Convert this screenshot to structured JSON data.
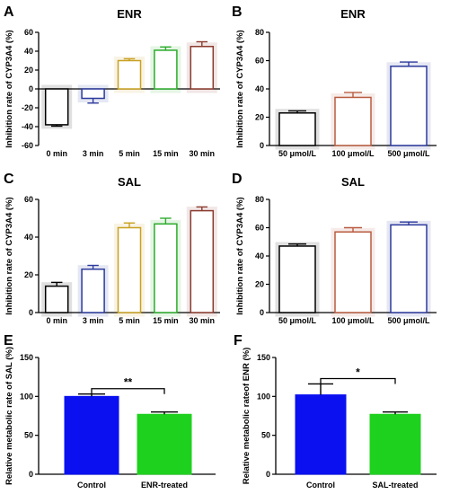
{
  "chart_data": [
    {
      "panel": "A",
      "type": "bar",
      "title": "ENR",
      "ylabel": "Inhibition rate of CYP3A4 (%)",
      "ylim": [
        -60,
        60
      ],
      "yticks": [
        -60,
        -40,
        -20,
        0,
        20,
        40,
        60
      ],
      "categories": [
        "0 min",
        "3 min",
        "5 min",
        "15 min",
        "30 min"
      ],
      "values": [
        -38,
        -10,
        30,
        41,
        45
      ],
      "errors": [
        1.5,
        5,
        2,
        3.5,
        5
      ],
      "colors": [
        "#000000",
        "#2b3a9c",
        "#c8a020",
        "#2cab2c",
        "#8b3a2e"
      ],
      "filled": false
    },
    {
      "panel": "B",
      "type": "bar",
      "title": "ENR",
      "ylabel": "Inhibition rate of CYP3A4 (%)",
      "ylim": [
        0,
        80
      ],
      "yticks": [
        0,
        20,
        40,
        60,
        80
      ],
      "categories": [
        "50 μmol/L",
        "100 μmol/L",
        "500 μmol/L"
      ],
      "values": [
        23,
        34,
        56
      ],
      "errors": [
        1.5,
        3.5,
        3
      ],
      "colors": [
        "#000000",
        "#b85c40",
        "#2c3a9c"
      ],
      "filled": false
    },
    {
      "panel": "C",
      "type": "bar",
      "title": "SAL",
      "ylabel": "Inhibition rate of CYP3A4 (%)",
      "ylim": [
        0,
        60
      ],
      "yticks": [
        0,
        20,
        40,
        60
      ],
      "categories": [
        "0 min",
        "3 min",
        "5 min",
        "15 min",
        "30 min"
      ],
      "values": [
        14,
        23,
        45,
        47,
        54
      ],
      "errors": [
        2,
        2,
        2.5,
        3,
        2
      ],
      "colors": [
        "#000000",
        "#2b3a9c",
        "#c8a020",
        "#2cab2c",
        "#8b3a2e"
      ],
      "filled": false
    },
    {
      "panel": "D",
      "type": "bar",
      "title": "SAL",
      "ylabel": "Inhibition rate of CYP3A4 (%)",
      "ylim": [
        0,
        80
      ],
      "yticks": [
        0,
        20,
        40,
        60,
        80
      ],
      "categories": [
        "50 μmol/L",
        "100 μmol/L",
        "500 μmol/L"
      ],
      "values": [
        47,
        57,
        62
      ],
      "errors": [
        1.5,
        3,
        2
      ],
      "colors": [
        "#000000",
        "#b85c40",
        "#2c3a9c"
      ],
      "filled": false
    },
    {
      "panel": "E",
      "type": "bar",
      "title": "",
      "ylabel": "Relative metabolic rate of SAL (%)",
      "ylim": [
        0,
        150
      ],
      "yticks": [
        0,
        50,
        100,
        150
      ],
      "categories": [
        "Control",
        "ENR-treated"
      ],
      "values": [
        100,
        77
      ],
      "errors": [
        3,
        3
      ],
      "colors": [
        "#0a10f0",
        "#1fd11f"
      ],
      "filled": true,
      "significance": "**"
    },
    {
      "panel": "F",
      "type": "bar",
      "title": "",
      "ylabel": "Relative metabolic rateof ENR (%)",
      "ylim": [
        0,
        150
      ],
      "yticks": [
        0,
        50,
        100,
        150
      ],
      "categories": [
        "Control",
        "SAL-treated"
      ],
      "values": [
        102,
        77
      ],
      "errors": [
        14,
        3
      ],
      "colors": [
        "#0a10f0",
        "#1fd11f"
      ],
      "filled": true,
      "significance": "*"
    }
  ]
}
